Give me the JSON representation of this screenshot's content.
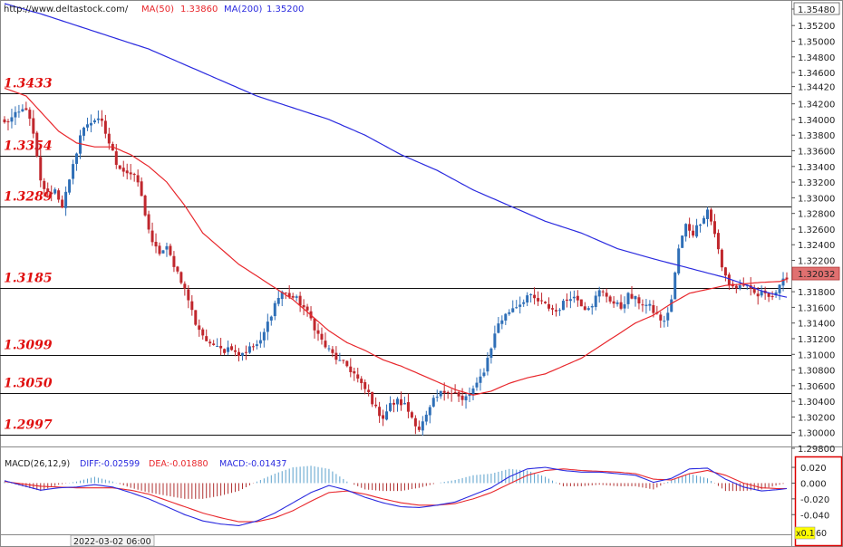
{
  "header": {
    "url": "http://www.deltastock.com/",
    "ma_items": [
      {
        "label": "MA(50)",
        "value": "1.33860",
        "color": "#e8262b"
      },
      {
        "label": "MA(200)",
        "value": "1.35200",
        "color": "#2a2adf"
      }
    ]
  },
  "macd_header": {
    "title": "MACD(26,12,9)",
    "items": [
      {
        "label": "DIFF:-0.02599",
        "color": "#2a2adf"
      },
      {
        "label": "DEA:-0.01880",
        "color": "#e8262b"
      },
      {
        "label": "MACD:-0.01437",
        "color": "#2a2adf"
      }
    ]
  },
  "footer": {
    "date_label": "2022-03-02 06:00",
    "scale_label": "x0.1",
    "scale_value": "60"
  },
  "colors": {
    "up": "#2f6fb7",
    "down": "#c0272d",
    "ma50": "#e8262b",
    "ma200": "#2a2adf",
    "level_text": "#e01010",
    "hist_up": "#5aa0cc",
    "hist_down": "#b03030"
  },
  "chart_data": [
    {
      "type": "candlestick",
      "title": "",
      "ylim": [
        1.298,
        1.3548
      ],
      "price_axis_labels": [
        "1.35480",
        "1.35200",
        "1.35000",
        "1.34800",
        "1.34600",
        "1.34420",
        "1.34200",
        "1.34000",
        "1.33800",
        "1.33600",
        "1.33400",
        "1.33200",
        "1.33000",
        "1.32800",
        "1.32600",
        "1.32400",
        "1.32200",
        "1.31800",
        "1.31600",
        "1.31400",
        "1.31200",
        "1.31000",
        "1.30800",
        "1.30600",
        "1.30400",
        "1.30200",
        "1.30000",
        "1.29800"
      ],
      "top_label": "1.35480",
      "current_price": "1.32032",
      "levels": [
        1.3433,
        1.3354,
        1.3289,
        1.3185,
        1.3099,
        1.305,
        1.2997
      ],
      "level_labels": [
        "1.3433",
        "1.3354",
        "1.3289",
        "1.3185",
        "1.3099",
        "1.3050",
        "1.2997"
      ],
      "close_anchors": [
        [
          0,
          1.3395
        ],
        [
          3,
          1.3405
        ],
        [
          6,
          1.3415
        ],
        [
          8,
          1.338
        ],
        [
          10,
          1.332
        ],
        [
          12,
          1.3305
        ],
        [
          14,
          1.331
        ],
        [
          16,
          1.329
        ],
        [
          18,
          1.332
        ],
        [
          21,
          1.338
        ],
        [
          23,
          1.3395
        ],
        [
          25,
          1.34
        ],
        [
          27,
          1.3395
        ],
        [
          29,
          1.337
        ],
        [
          31,
          1.3345
        ],
        [
          33,
          1.3335
        ],
        [
          35,
          1.333
        ],
        [
          37,
          1.332
        ],
        [
          39,
          1.328
        ],
        [
          41,
          1.324
        ],
        [
          43,
          1.323
        ],
        [
          45,
          1.3235
        ],
        [
          47,
          1.3215
        ],
        [
          49,
          1.3195
        ],
        [
          51,
          1.317
        ],
        [
          53,
          1.314
        ],
        [
          55,
          1.3125
        ],
        [
          57,
          1.311
        ],
        [
          59,
          1.3115
        ],
        [
          61,
          1.3105
        ],
        [
          63,
          1.311
        ],
        [
          65,
          1.31
        ],
        [
          67,
          1.3105
        ],
        [
          69,
          1.311
        ],
        [
          71,
          1.3115
        ],
        [
          73,
          1.314
        ],
        [
          75,
          1.3165
        ],
        [
          77,
          1.318
        ],
        [
          79,
          1.3175
        ],
        [
          81,
          1.317
        ],
        [
          83,
          1.316
        ],
        [
          85,
          1.3145
        ],
        [
          87,
          1.3125
        ],
        [
          89,
          1.311
        ],
        [
          91,
          1.31
        ],
        [
          93,
          1.309
        ],
        [
          95,
          1.3085
        ],
        [
          97,
          1.3075
        ],
        [
          99,
          1.306
        ],
        [
          101,
          1.305
        ],
        [
          103,
          1.303
        ],
        [
          105,
          1.302
        ],
        [
          107,
          1.3035
        ],
        [
          109,
          1.304
        ],
        [
          111,
          1.3035
        ],
        [
          113,
          1.302
        ],
        [
          115,
          1.3005
        ],
        [
          117,
          1.302
        ],
        [
          119,
          1.304
        ],
        [
          121,
          1.305
        ],
        [
          123,
          1.3055
        ],
        [
          125,
          1.305
        ],
        [
          127,
          1.304
        ],
        [
          129,
          1.305
        ],
        [
          131,
          1.306
        ],
        [
          133,
          1.308
        ],
        [
          135,
          1.311
        ],
        [
          137,
          1.314
        ],
        [
          139,
          1.315
        ],
        [
          141,
          1.316
        ],
        [
          143,
          1.3165
        ],
        [
          145,
          1.3175
        ],
        [
          147,
          1.317
        ],
        [
          149,
          1.3165
        ],
        [
          151,
          1.316
        ],
        [
          153,
          1.3155
        ],
        [
          155,
          1.3165
        ],
        [
          157,
          1.3175
        ],
        [
          159,
          1.317
        ],
        [
          161,
          1.316
        ],
        [
          163,
          1.3165
        ],
        [
          165,
          1.318
        ],
        [
          167,
          1.3175
        ],
        [
          169,
          1.3165
        ],
        [
          171,
          1.316
        ],
        [
          173,
          1.3175
        ],
        [
          175,
          1.317
        ],
        [
          177,
          1.3165
        ],
        [
          179,
          1.316
        ],
        [
          181,
          1.315
        ],
        [
          183,
          1.314
        ],
        [
          185,
          1.317
        ],
        [
          187,
          1.3235
        ],
        [
          189,
          1.3265
        ],
        [
          191,
          1.3255
        ],
        [
          193,
          1.327
        ],
        [
          195,
          1.3285
        ],
        [
          197,
          1.3255
        ],
        [
          199,
          1.321
        ],
        [
          201,
          1.319
        ],
        [
          203,
          1.3185
        ],
        [
          205,
          1.319
        ],
        [
          207,
          1.318
        ],
        [
          209,
          1.3175
        ],
        [
          211,
          1.318
        ],
        [
          213,
          1.3175
        ],
        [
          215,
          1.3185
        ],
        [
          217,
          1.32
        ]
      ],
      "ma50_anchors": [
        [
          0,
          1.344
        ],
        [
          6,
          1.343
        ],
        [
          10,
          1.341
        ],
        [
          15,
          1.3385
        ],
        [
          20,
          1.337
        ],
        [
          25,
          1.3365
        ],
        [
          30,
          1.3365
        ],
        [
          35,
          1.3355
        ],
        [
          40,
          1.334
        ],
        [
          45,
          1.332
        ],
        [
          50,
          1.329
        ],
        [
          55,
          1.3255
        ],
        [
          60,
          1.3235
        ],
        [
          65,
          1.3215
        ],
        [
          70,
          1.32
        ],
        [
          75,
          1.3185
        ],
        [
          80,
          1.317
        ],
        [
          85,
          1.315
        ],
        [
          90,
          1.313
        ],
        [
          95,
          1.3115
        ],
        [
          100,
          1.3105
        ],
        [
          105,
          1.3093
        ],
        [
          110,
          1.3085
        ],
        [
          115,
          1.3075
        ],
        [
          120,
          1.3065
        ],
        [
          125,
          1.3055
        ],
        [
          130,
          1.3048
        ],
        [
          135,
          1.3053
        ],
        [
          140,
          1.3063
        ],
        [
          145,
          1.307
        ],
        [
          150,
          1.3075
        ],
        [
          155,
          1.3085
        ],
        [
          160,
          1.3095
        ],
        [
          165,
          1.311
        ],
        [
          170,
          1.3125
        ],
        [
          175,
          1.314
        ],
        [
          180,
          1.315
        ],
        [
          185,
          1.3165
        ],
        [
          190,
          1.3178
        ],
        [
          195,
          1.3183
        ],
        [
          200,
          1.3188
        ],
        [
          205,
          1.319
        ],
        [
          210,
          1.3192
        ],
        [
          215,
          1.3193
        ],
        [
          217,
          1.3196
        ]
      ],
      "ma200_anchors": [
        [
          0,
          1.3548
        ],
        [
          10,
          1.3535
        ],
        [
          20,
          1.352
        ],
        [
          30,
          1.3505
        ],
        [
          40,
          1.349
        ],
        [
          50,
          1.347
        ],
        [
          60,
          1.345
        ],
        [
          70,
          1.343
        ],
        [
          80,
          1.3415
        ],
        [
          90,
          1.34
        ],
        [
          100,
          1.338
        ],
        [
          110,
          1.3355
        ],
        [
          120,
          1.3335
        ],
        [
          130,
          1.331
        ],
        [
          140,
          1.329
        ],
        [
          150,
          1.327
        ],
        [
          160,
          1.3255
        ],
        [
          170,
          1.3235
        ],
        [
          180,
          1.3222
        ],
        [
          190,
          1.321
        ],
        [
          200,
          1.3198
        ],
        [
          205,
          1.319
        ],
        [
          210,
          1.3181
        ],
        [
          215,
          1.3175
        ],
        [
          217,
          1.3173
        ]
      ]
    },
    {
      "type": "macd",
      "ylim": [
        -0.065,
        0.035
      ],
      "axis_labels": [
        "0.020",
        "0.000",
        "-0.020",
        "-0.040"
      ],
      "diff_anchors": [
        [
          0,
          0.003
        ],
        [
          5,
          -0.003
        ],
        [
          10,
          -0.009
        ],
        [
          15,
          -0.006
        ],
        [
          20,
          -0.005
        ],
        [
          25,
          -0.002
        ],
        [
          30,
          -0.005
        ],
        [
          35,
          -0.012
        ],
        [
          40,
          -0.02
        ],
        [
          45,
          -0.03
        ],
        [
          50,
          -0.04
        ],
        [
          55,
          -0.048
        ],
        [
          60,
          -0.052
        ],
        [
          65,
          -0.054
        ],
        [
          70,
          -0.048
        ],
        [
          75,
          -0.038
        ],
        [
          80,
          -0.025
        ],
        [
          85,
          -0.012
        ],
        [
          90,
          -0.003
        ],
        [
          95,
          -0.009
        ],
        [
          100,
          -0.018
        ],
        [
          105,
          -0.025
        ],
        [
          110,
          -0.03
        ],
        [
          115,
          -0.031
        ],
        [
          120,
          -0.028
        ],
        [
          125,
          -0.024
        ],
        [
          130,
          -0.015
        ],
        [
          135,
          -0.006
        ],
        [
          140,
          0.008
        ],
        [
          145,
          0.018
        ],
        [
          150,
          0.02
        ],
        [
          155,
          0.016
        ],
        [
          160,
          0.014
        ],
        [
          165,
          0.014
        ],
        [
          170,
          0.012
        ],
        [
          175,
          0.01
        ],
        [
          180,
          0.001
        ],
        [
          185,
          0.006
        ],
        [
          190,
          0.018
        ],
        [
          195,
          0.019
        ],
        [
          200,
          0.005
        ],
        [
          205,
          -0.005
        ],
        [
          210,
          -0.01
        ],
        [
          215,
          -0.008
        ],
        [
          217,
          -0.007
        ]
      ],
      "dea_anchors": [
        [
          0,
          0.002
        ],
        [
          5,
          -0.001
        ],
        [
          10,
          -0.004
        ],
        [
          15,
          -0.005
        ],
        [
          20,
          -0.006
        ],
        [
          25,
          -0.006
        ],
        [
          30,
          -0.006
        ],
        [
          35,
          -0.009
        ],
        [
          40,
          -0.014
        ],
        [
          45,
          -0.022
        ],
        [
          50,
          -0.03
        ],
        [
          55,
          -0.038
        ],
        [
          60,
          -0.044
        ],
        [
          65,
          -0.049
        ],
        [
          70,
          -0.049
        ],
        [
          75,
          -0.044
        ],
        [
          80,
          -0.035
        ],
        [
          85,
          -0.023
        ],
        [
          90,
          -0.012
        ],
        [
          95,
          -0.01
        ],
        [
          100,
          -0.014
        ],
        [
          105,
          -0.02
        ],
        [
          110,
          -0.025
        ],
        [
          115,
          -0.028
        ],
        [
          120,
          -0.028
        ],
        [
          125,
          -0.026
        ],
        [
          130,
          -0.02
        ],
        [
          135,
          -0.012
        ],
        [
          140,
          -0.001
        ],
        [
          145,
          0.01
        ],
        [
          150,
          0.016
        ],
        [
          155,
          0.018
        ],
        [
          160,
          0.016
        ],
        [
          165,
          0.015
        ],
        [
          170,
          0.014
        ],
        [
          175,
          0.012
        ],
        [
          180,
          0.005
        ],
        [
          185,
          0.004
        ],
        [
          190,
          0.012
        ],
        [
          195,
          0.016
        ],
        [
          200,
          0.01
        ],
        [
          205,
          0.0
        ],
        [
          210,
          -0.006
        ],
        [
          215,
          -0.007
        ],
        [
          217,
          -0.007
        ]
      ]
    }
  ]
}
